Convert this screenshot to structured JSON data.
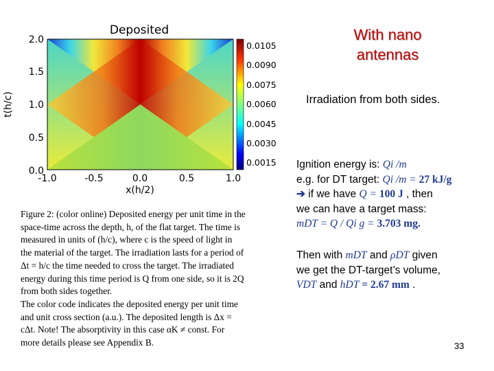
{
  "figure": {
    "plot_title": "Deposited",
    "x_label": "x(h/2)",
    "y_label": "t(h/c)",
    "x_ticks": [
      "-1.0",
      "-0.5",
      "0.0",
      "0.5",
      "1.0"
    ],
    "y_ticks": [
      "2.0",
      "1.5",
      "1.0",
      "0.5",
      "0.0"
    ],
    "colorbar_ticks": [
      "0.0105",
      "0.0090",
      "0.0075",
      "0.0060",
      "0.0045",
      "0.0030",
      "0.0015"
    ],
    "colormap": "jet",
    "colors": {
      "red": "#b40000",
      "yellow": "#f2e83a",
      "green": "#8ed860",
      "cyan": "#3ad6e8",
      "blue": "#1b3bd6"
    }
  },
  "caption": {
    "p1_l1": "Figure 2: (color online) Deposited energy per unit time in the",
    "p1_l2": "space-time across the depth, h, of the flat target. The time is",
    "p1_l3": "measured in units of (h/c), where c is the speed of light in",
    "p1_l4": "the material of the target. The irradiation lasts for a period of",
    "p1_l5": "Δt = h/c the time needed to cross the target. The irradiated",
    "p1_l6": "energy during this time period is Q from one side, so it is 2Q",
    "p1_l7": "from both sides together.",
    "p2_l1": "The color code indicates the deposited energy per unit time",
    "p2_l2": "and unit cross section (a.u.). The deposited length is Δx =",
    "p2_l3": "cΔt. Note! The absorptivity in this case αK ≠ const. For",
    "p2_l4": "more details please see Appendix B."
  },
  "slide": {
    "title_l1": "With nano",
    "title_l2": "antennas",
    "subtitle": "Irradiation from both sides.",
    "b1": {
      "t1": "Ignition energy is: ",
      "m1": "Qi /m",
      "t2": "e.g. for DT target: ",
      "m2": "Qi /m = ",
      "v2": "27 kJ/g",
      "arrow": "➔",
      "t3": " if we have ",
      "m3": "Q = ",
      "v3": "100 J",
      "t3b": " , then",
      "t4": "we can have a target mass:",
      "m5": "mDT = Q / Qi  g = ",
      "v5": "3.703 mg."
    },
    "b2": {
      "t1": "Then with ",
      "m1": "mDT",
      "t1b": " and ",
      "m1b": "ρDT",
      "t1c": " given",
      "t2": "we get the DT-target’s volume,",
      "m3": "VDT",
      "t3": " and ",
      "m3b": "hDT",
      "v3": " = 2.67 mm",
      "t3b": " ."
    }
  },
  "page_number": "33"
}
